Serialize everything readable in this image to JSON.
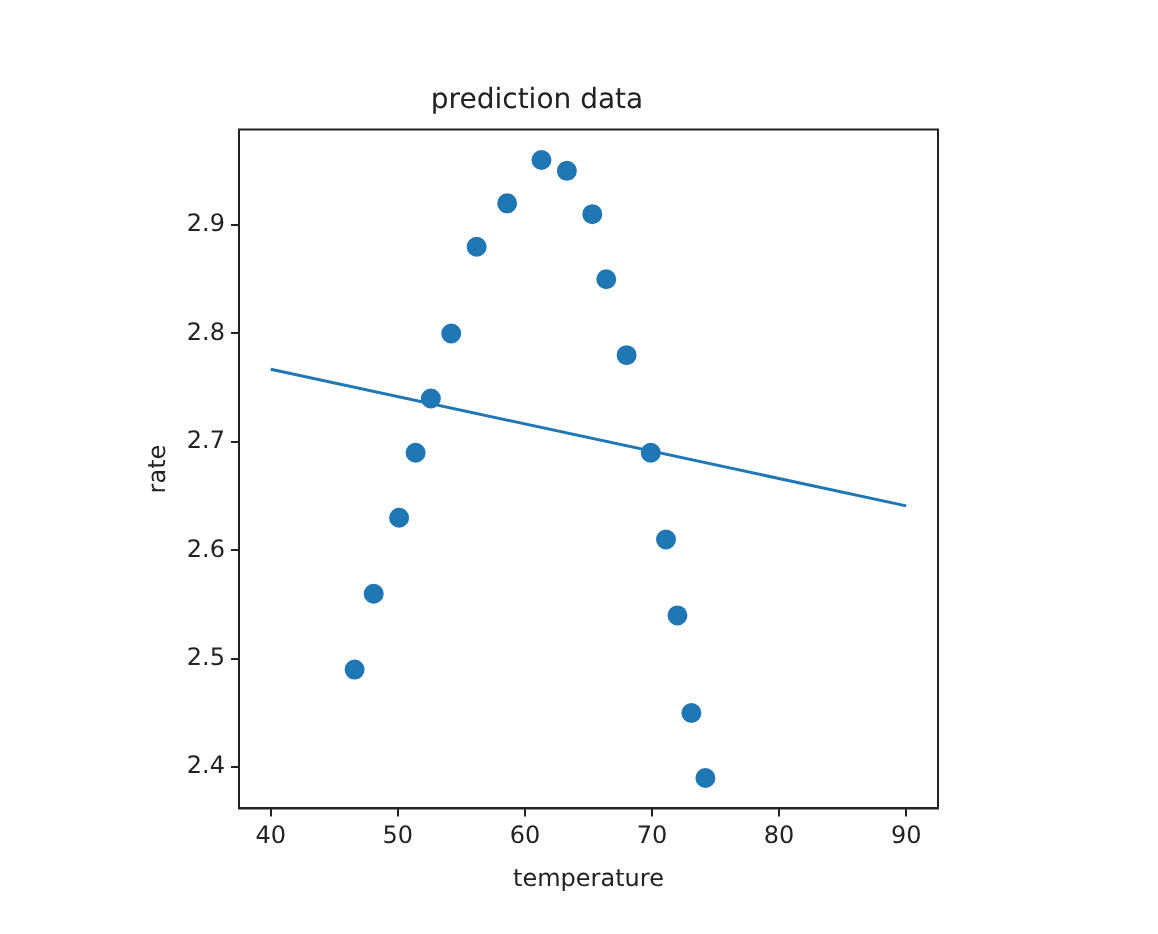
{
  "chart_data": {
    "type": "scatter",
    "title": "prediction data",
    "xlabel": "temperature",
    "ylabel": "rate",
    "xlim": [
      37.5,
      92.5
    ],
    "ylim": [
      2.362,
      2.988
    ],
    "xticks": [
      40,
      50,
      60,
      70,
      80,
      90
    ],
    "yticks": [
      2.4,
      2.5,
      2.6,
      2.7,
      2.8,
      2.9
    ],
    "grid": false,
    "legend": false,
    "series": [
      {
        "type": "scatter",
        "color": "#1f77b4",
        "marker": "circle",
        "x": [
          46.6,
          48.1,
          50.1,
          51.4,
          52.6,
          54.2,
          56.2,
          58.6,
          61.3,
          63.3,
          65.3,
          66.4,
          68.0,
          69.9,
          71.1,
          72.0,
          73.1,
          74.2
        ],
        "values": [
          2.49,
          2.56,
          2.63,
          2.69,
          2.74,
          2.8,
          2.88,
          2.92,
          2.96,
          2.95,
          2.91,
          2.85,
          2.78,
          2.69,
          2.61,
          2.54,
          2.45,
          2.39
        ]
      },
      {
        "type": "line",
        "color": "#1f77b4",
        "marker": "none",
        "line_style": "solid",
        "x": [
          40,
          90
        ],
        "values": [
          2.767,
          2.641
        ]
      }
    ]
  }
}
